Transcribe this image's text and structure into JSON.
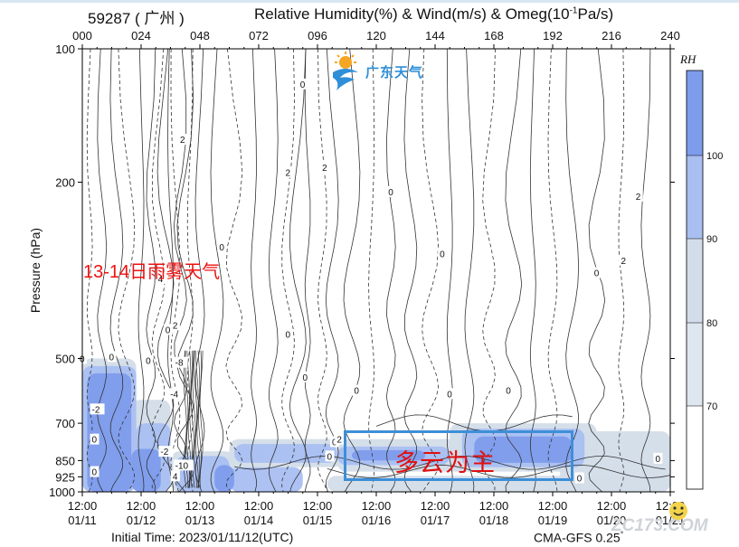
{
  "header": {
    "station": "59287 ( 广州 )",
    "title_main": "Relative Humidity(%) & Wind(m/s) & Omeg(10",
    "title_exp": "-1",
    "title_tail": "Pa/s)"
  },
  "footer": {
    "initial_time": "Initial Time: 2023/01/11/12(UTC)",
    "model_main": "CMA-GFS  0.25",
    "model_deg": "°"
  },
  "logo": {
    "text": "广东天气",
    "icon": "sun-wave-logo-icon"
  },
  "annotations": {
    "red_note": "13-14日雨雾天气",
    "box_note": "多云为主"
  },
  "watermark": "ZC173.COM",
  "colorbar": {
    "title": "RH",
    "ticks": [
      "100",
      "90",
      "80",
      "70"
    ]
  },
  "colors": {
    "rh_100": "#7e9cec",
    "rh_90": "#a9bff2",
    "rh_80": "#d3dde9",
    "rh_70": "#ffffff",
    "contour": "#333333",
    "annot_red": "#ee1111",
    "box_blue": "#3d8fd8"
  },
  "chart_data": {
    "type": "heatmap",
    "title": "Relative Humidity(%) & Wind(m/s) & Omeg(10^-1Pa/s)",
    "xlabel": "",
    "ylabel": "Pressure (hPa)",
    "y_scale": "log",
    "y_reversed": true,
    "ylim": [
      1000,
      100
    ],
    "top_ticks": [
      "000",
      "024",
      "048",
      "072",
      "096",
      "120",
      "144",
      "168",
      "192",
      "216",
      "240"
    ],
    "bottom_ticks": [
      [
        "12:00",
        "01/11"
      ],
      [
        "12:00",
        "01/12"
      ],
      [
        "12:00",
        "01/13"
      ],
      [
        "12:00",
        "01/14"
      ],
      [
        "12:00",
        "01/15"
      ],
      [
        "12:00",
        "01/16"
      ],
      [
        "12:00",
        "01/17"
      ],
      [
        "12:00",
        "01/18"
      ],
      [
        "12:00",
        "01/19"
      ],
      [
        "12:00",
        "01/20"
      ],
      [
        "12:00",
        "01/21"
      ]
    ],
    "y_ticks": [
      "100",
      "200",
      "500",
      "700",
      "850",
      "925",
      "1000"
    ],
    "y_values": [
      100,
      200,
      500,
      700,
      850,
      925,
      1000
    ],
    "forecast_hours": [
      0,
      24,
      48,
      72,
      96,
      120,
      144,
      168,
      192,
      216,
      240
    ],
    "rh_levels": [
      70,
      80,
      90,
      100
    ],
    "rh_regions": [
      {
        "level": 80,
        "x0": 0,
        "x1": 22,
        "p_top": 500,
        "p_bot": 1000
      },
      {
        "level": 90,
        "x0": 0,
        "x1": 22,
        "p_top": 520,
        "p_bot": 1000
      },
      {
        "level": 100,
        "x0": 2,
        "x1": 20,
        "p_top": 540,
        "p_bot": 1000
      },
      {
        "level": 80,
        "x0": 20,
        "x1": 36,
        "p_top": 620,
        "p_bot": 1000
      },
      {
        "level": 90,
        "x0": 22,
        "x1": 36,
        "p_top": 700,
        "p_bot": 1000
      },
      {
        "level": 100,
        "x0": 20,
        "x1": 32,
        "p_top": 800,
        "p_bot": 1000
      },
      {
        "level": 80,
        "x0": 36,
        "x1": 62,
        "p_top": 810,
        "p_bot": 1000
      },
      {
        "level": 90,
        "x0": 38,
        "x1": 60,
        "p_top": 830,
        "p_bot": 1000
      },
      {
        "level": 100,
        "x0": 54,
        "x1": 62,
        "p_top": 870,
        "p_bot": 1000
      },
      {
        "level": 80,
        "x0": 60,
        "x1": 106,
        "p_top": 760,
        "p_bot": 880
      },
      {
        "level": 90,
        "x0": 62,
        "x1": 104,
        "p_top": 780,
        "p_bot": 860
      },
      {
        "level": 80,
        "x0": 104,
        "x1": 158,
        "p_top": 760,
        "p_bot": 900
      },
      {
        "level": 90,
        "x0": 104,
        "x1": 150,
        "p_top": 790,
        "p_bot": 870
      },
      {
        "level": 100,
        "x0": 110,
        "x1": 140,
        "p_top": 805,
        "p_bot": 850
      },
      {
        "level": 80,
        "x0": 150,
        "x1": 210,
        "p_top": 700,
        "p_bot": 900
      },
      {
        "level": 90,
        "x0": 155,
        "x1": 205,
        "p_top": 720,
        "p_bot": 880
      },
      {
        "level": 100,
        "x0": 160,
        "x1": 200,
        "p_top": 750,
        "p_bot": 860
      },
      {
        "level": 80,
        "x0": 195,
        "x1": 240,
        "p_top": 730,
        "p_bot": 1000
      },
      {
        "level": 80,
        "x0": 100,
        "x1": 240,
        "p_top": 920,
        "p_bot": 1000
      },
      {
        "level": 90,
        "x0": 60,
        "x1": 90,
        "p_top": 880,
        "p_bot": 1000
      }
    ],
    "omega_labels": [
      {
        "text": "0",
        "h": 90,
        "p": 120
      },
      {
        "text": "2",
        "h": 41,
        "p": 160
      },
      {
        "text": "2",
        "h": 84,
        "p": 190
      },
      {
        "text": "2",
        "h": 99,
        "p": 185
      },
      {
        "text": "0",
        "h": 57,
        "p": 280
      },
      {
        "text": "4",
        "h": 32,
        "p": 330
      },
      {
        "text": "2",
        "h": 38,
        "p": 420
      },
      {
        "text": "-8",
        "h": 39,
        "p": 510
      },
      {
        "text": "0",
        "h": 35,
        "p": 430
      },
      {
        "text": "0",
        "h": 0,
        "p": 500
      },
      {
        "text": "0",
        "h": 12,
        "p": 495
      },
      {
        "text": "0",
        "h": 27,
        "p": 505
      },
      {
        "text": "0",
        "h": 84,
        "p": 440
      },
      {
        "text": "0",
        "h": 91,
        "p": 550
      },
      {
        "text": "-4",
        "h": 37,
        "p": 600
      },
      {
        "text": "-2",
        "h": 5,
        "p": 650
      },
      {
        "text": "0",
        "h": 5,
        "p": 760
      },
      {
        "text": "-2",
        "h": 33,
        "p": 810
      },
      {
        "text": "-10",
        "h": 39,
        "p": 870
      },
      {
        "text": "4",
        "h": 38,
        "p": 920
      },
      {
        "text": "0",
        "h": 5,
        "p": 900
      },
      {
        "text": "0",
        "h": 112,
        "p": 590
      },
      {
        "text": "0",
        "h": 150,
        "p": 600
      },
      {
        "text": "0",
        "h": 174,
        "p": 590
      },
      {
        "text": "0",
        "h": 103,
        "p": 770
      },
      {
        "text": "0",
        "h": 101,
        "p": 830
      },
      {
        "text": "0",
        "h": 147,
        "p": 290
      },
      {
        "text": "2",
        "h": 227,
        "p": 215
      },
      {
        "text": "0",
        "h": 210,
        "p": 320
      },
      {
        "text": "2",
        "h": 221,
        "p": 300
      },
      {
        "text": "0",
        "h": 235,
        "p": 840
      },
      {
        "text": "0",
        "h": 203,
        "p": 930
      },
      {
        "text": "2",
        "h": 105,
        "p": 760
      },
      {
        "text": "0",
        "h": 126,
        "p": 210
      }
    ]
  }
}
